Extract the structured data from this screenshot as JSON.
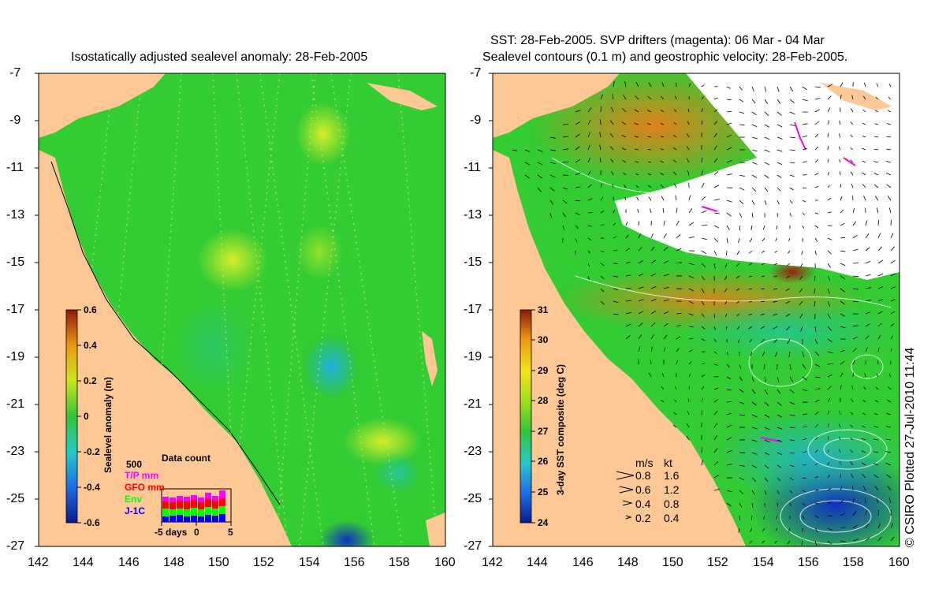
{
  "left_panel": {
    "title": "Isostatically adjusted sealevel anomaly: 28-Feb-2005",
    "colorbar": {
      "label": "Sealevel anomaly (m)",
      "ticks": [
        "0.6",
        "0.4",
        "0.2",
        "0",
        "-0.2",
        "-0.4",
        "-0.6"
      ]
    },
    "data_count": {
      "title": "Data count",
      "max_label": "500",
      "series": [
        {
          "name": "T/P mm",
          "color": "#ff00ff"
        },
        {
          "name": "GFO mm",
          "color": "#ff0000"
        },
        {
          "name": "Env",
          "color": "#00ff00"
        },
        {
          "name": "J-1C",
          "color": "#0000ff"
        }
      ],
      "x_label": "days",
      "x_ticks": [
        "-5",
        "0",
        "5"
      ]
    }
  },
  "right_panel": {
    "title_line1": "SST: 28-Feb-2005. SVP drifters (magenta): 06 Mar - 04 Mar",
    "title_line2": "Sealevel contours (0.1 m) and geostrophic velocity: 28-Feb-2005.",
    "colorbar": {
      "label": "3-day SST composite (deg C)",
      "ticks": [
        "31",
        "30",
        "29",
        "28",
        "27",
        "26",
        "25",
        "24"
      ]
    },
    "velocity_scale": {
      "header_ms": "m/s",
      "header_kt": "kt",
      "rows": [
        {
          "ms": "0.8",
          "kt": "1.6"
        },
        {
          "ms": "0.6",
          "kt": "1.2"
        },
        {
          "ms": "0.4",
          "kt": "0.8"
        },
        {
          "ms": "0.2",
          "kt": "0.4"
        }
      ]
    },
    "credit": "© CSIRO Plotted 27-Jul-2010 11:44"
  },
  "axes": {
    "lat_ticks": [
      "-7",
      "-9",
      "-11",
      "-13",
      "-15",
      "-17",
      "-19",
      "-21",
      "-23",
      "-25",
      "-27"
    ],
    "lon_ticks": [
      "142",
      "144",
      "146",
      "148",
      "150",
      "152",
      "154",
      "156",
      "158",
      "160"
    ]
  },
  "colors": {
    "land": "#fdc896",
    "ocean_base": "#33cc33",
    "sst_cloud": "#ffffff"
  }
}
